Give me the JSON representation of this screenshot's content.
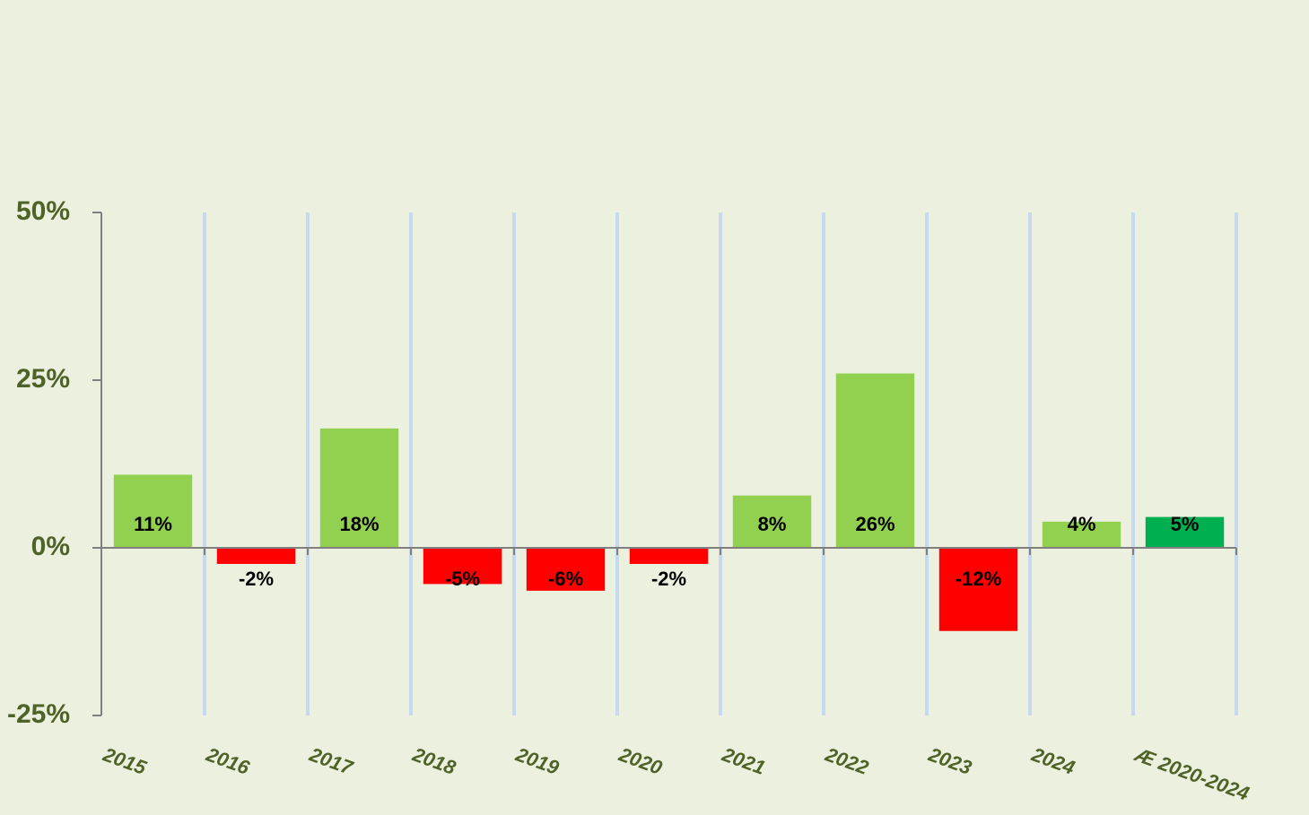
{
  "chart_data": {
    "type": "bar",
    "categories": [
      "2015",
      "2016",
      "2017",
      "2018",
      "2019",
      "2020",
      "2021",
      "2022",
      "2023",
      "2024",
      "Æ 2020-2024"
    ],
    "values": [
      10.9,
      -2.4,
      17.8,
      -5.4,
      -6.4,
      -2.4,
      7.8,
      26,
      -12.4,
      3.9,
      4.6
    ],
    "value_labels": [
      "11%",
      "-2%",
      "18%",
      "-5%",
      "-6%",
      "-2%",
      "8%",
      "26%",
      "-12%",
      "4%",
      "5%"
    ],
    "colors": [
      "#92d050",
      "#ff0000",
      "#92d050",
      "#ff0000",
      "#ff0000",
      "#ff0000",
      "#92d050",
      "#92d050",
      "#ff0000",
      "#92d050",
      "#00b050"
    ],
    "ylim": [
      -25,
      50
    ],
    "yticks": [
      {
        "value": -25,
        "label": "-25%"
      },
      {
        "value": 0,
        "label": "0%"
      },
      {
        "value": 25,
        "label": "25%"
      },
      {
        "value": 50,
        "label": "50%"
      }
    ],
    "grid": true
  }
}
